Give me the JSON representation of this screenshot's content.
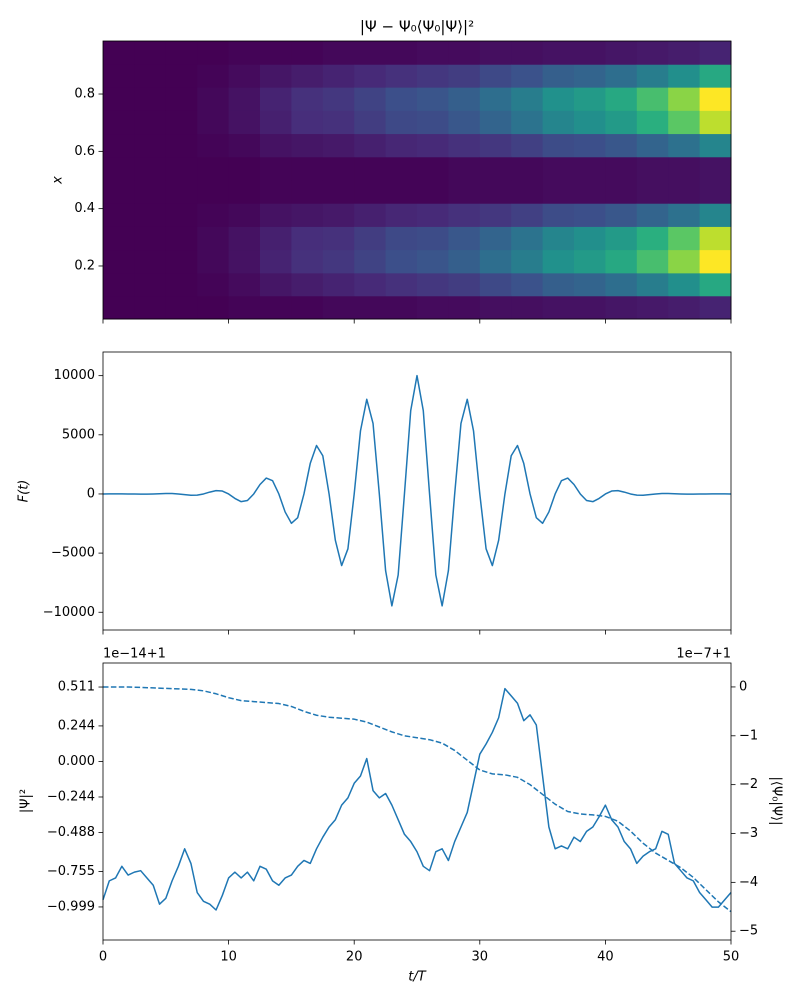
{
  "chart_data": [
    {
      "type": "heatmap",
      "title": "|Ψ − Ψ₀⟨Ψ₀|Ψ⟩|²",
      "ylabel": "x",
      "colormap": "viridis",
      "show_xtick_labels": false,
      "xlim": [
        0,
        50
      ],
      "xticks": [
        0,
        10,
        20,
        30,
        40,
        50
      ],
      "ylim": [
        0.015,
        0.985
      ],
      "yticks": [
        0.2,
        0.4,
        0.6,
        0.8
      ],
      "zlim": [
        0,
        1
      ],
      "x_edges": [
        0,
        2.5,
        5,
        7.5,
        10,
        12.5,
        15,
        17.5,
        20,
        22.5,
        25,
        27.5,
        30,
        32.5,
        35,
        37.5,
        40,
        42.5,
        45,
        47.5,
        50
      ],
      "y_edges": [
        0.015,
        0.096,
        0.176,
        0.257,
        0.338,
        0.419,
        0.5,
        0.581,
        0.662,
        0.743,
        0.824,
        0.904,
        0.985
      ],
      "z": [
        [
          0,
          0,
          0,
          0,
          0,
          0,
          0,
          0,
          0,
          0,
          0,
          0
        ],
        [
          0,
          0,
          0,
          0,
          0,
          0,
          0,
          0,
          0,
          0,
          0,
          0
        ],
        [
          0,
          0,
          0,
          0,
          0,
          0,
          0,
          0,
          0,
          0,
          0,
          0
        ],
        [
          0,
          0.01,
          0.02,
          0.02,
          0.01,
          0,
          0,
          0.01,
          0.02,
          0.02,
          0.01,
          0
        ],
        [
          0.01,
          0.03,
          0.05,
          0.05,
          0.02,
          0,
          0,
          0.02,
          0.05,
          0.05,
          0.03,
          0.01
        ],
        [
          0.01,
          0.06,
          0.1,
          0.09,
          0.05,
          0.01,
          0.01,
          0.05,
          0.09,
          0.1,
          0.06,
          0.01
        ],
        [
          0.01,
          0.08,
          0.14,
          0.13,
          0.06,
          0.01,
          0.01,
          0.06,
          0.13,
          0.14,
          0.08,
          0.01
        ],
        [
          0.02,
          0.1,
          0.16,
          0.14,
          0.07,
          0.01,
          0.01,
          0.07,
          0.14,
          0.16,
          0.1,
          0.02
        ],
        [
          0.02,
          0.12,
          0.2,
          0.18,
          0.09,
          0.01,
          0.01,
          0.09,
          0.18,
          0.2,
          0.12,
          0.02
        ],
        [
          0.02,
          0.14,
          0.24,
          0.22,
          0.11,
          0.01,
          0.01,
          0.11,
          0.22,
          0.24,
          0.14,
          0.02
        ],
        [
          0.03,
          0.16,
          0.26,
          0.23,
          0.12,
          0.01,
          0.01,
          0.12,
          0.23,
          0.26,
          0.16,
          0.03
        ],
        [
          0.03,
          0.18,
          0.3,
          0.27,
          0.14,
          0.02,
          0.02,
          0.14,
          0.27,
          0.3,
          0.18,
          0.03
        ],
        [
          0.04,
          0.22,
          0.36,
          0.32,
          0.16,
          0.02,
          0.02,
          0.16,
          0.32,
          0.36,
          0.22,
          0.04
        ],
        [
          0.04,
          0.25,
          0.42,
          0.38,
          0.19,
          0.02,
          0.02,
          0.19,
          0.38,
          0.42,
          0.25,
          0.04
        ],
        [
          0.05,
          0.3,
          0.5,
          0.45,
          0.23,
          0.03,
          0.03,
          0.23,
          0.45,
          0.5,
          0.3,
          0.05
        ],
        [
          0.05,
          0.32,
          0.54,
          0.49,
          0.24,
          0.03,
          0.03,
          0.24,
          0.49,
          0.54,
          0.32,
          0.05
        ],
        [
          0.06,
          0.36,
          0.6,
          0.54,
          0.27,
          0.03,
          0.03,
          0.27,
          0.54,
          0.6,
          0.36,
          0.06
        ],
        [
          0.07,
          0.42,
          0.7,
          0.63,
          0.32,
          0.04,
          0.04,
          0.32,
          0.63,
          0.7,
          0.42,
          0.07
        ],
        [
          0.08,
          0.49,
          0.82,
          0.74,
          0.37,
          0.04,
          0.04,
          0.37,
          0.74,
          0.82,
          0.49,
          0.08
        ],
        [
          0.1,
          0.6,
          1.0,
          0.9,
          0.45,
          0.05,
          0.05,
          0.45,
          0.9,
          1.0,
          0.6,
          0.1
        ]
      ]
    },
    {
      "type": "line",
      "ylabel": "F(t)",
      "show_xtick_labels": false,
      "xlim": [
        0,
        50
      ],
      "xticks": [
        0,
        10,
        20,
        30,
        40,
        50
      ],
      "ylim": [
        -11500,
        12000
      ],
      "yticks": [
        {
          "value": -10000,
          "label": "−10000"
        },
        {
          "value": -5000,
          "label": "−5000"
        },
        0,
        5000,
        10000
      ],
      "series": [
        {
          "color": "#1f77b4",
          "linestyle": "solid",
          "x": [
            0,
            0.5,
            1,
            1.5,
            2,
            2.5,
            3,
            3.5,
            4,
            4.5,
            5,
            5.5,
            6,
            6.5,
            7,
            7.5,
            8,
            8.5,
            9,
            9.5,
            10,
            10.5,
            11,
            11.5,
            12,
            12.5,
            13,
            13.5,
            14,
            14.5,
            15,
            15.5,
            16,
            16.5,
            17,
            17.5,
            18,
            18.5,
            19,
            19.5,
            20,
            20.5,
            21,
            21.5,
            22,
            22.5,
            23,
            23.5,
            24,
            24.5,
            25,
            25.5,
            26,
            26.5,
            27,
            27.5,
            28,
            28.5,
            29,
            29.5,
            30,
            30.5,
            31,
            31.5,
            32,
            32.5,
            33,
            33.5,
            34,
            34.5,
            35,
            35.5,
            36,
            36.5,
            37,
            37.5,
            38,
            38.5,
            39,
            39.5,
            40,
            40.5,
            41,
            41.5,
            42,
            42.5,
            43,
            43.5,
            44,
            44.5,
            45,
            45.5,
            46,
            46.5,
            47,
            47.5,
            48,
            48.5,
            49,
            49.5,
            50
          ],
          "values": [
            0,
            2,
            4,
            4,
            0,
            -8,
            -14,
            -12,
            0,
            20,
            38,
            35,
            0,
            -60,
            -109,
            -99,
            0,
            158,
            282,
            248,
            0,
            -377,
            -650,
            -556,
            0,
            800,
            1342,
            1118,
            0,
            -1520,
            -2479,
            -2008,
            0,
            2581,
            4096,
            3227,
            0,
            -3922,
            -6053,
            -4637,
            0,
            5332,
            8000,
            5960,
            0,
            -6481,
            -9457,
            -6853,
            0,
            7046,
            10000,
            7046,
            0,
            -6853,
            -9457,
            -6481,
            0,
            5960,
            8000,
            5332,
            0,
            -4637,
            -6053,
            -3922,
            0,
            3227,
            4096,
            2581,
            0,
            -2008,
            -2479,
            -1520,
            0,
            1118,
            1342,
            800,
            0,
            -556,
            -650,
            -377,
            0,
            248,
            282,
            158,
            0,
            -99,
            -109,
            -60,
            0,
            35,
            38,
            20,
            0,
            -12,
            -14,
            -8,
            0,
            4,
            4,
            2,
            0
          ]
        }
      ]
    },
    {
      "type": "line",
      "ylabel": "|Ψ|²",
      "y2label": "|⟨Ψ₀|Ψ⟩|",
      "xlabel": "t/T",
      "show_xtick_labels": true,
      "y_offset": "1e−14+1",
      "y2_offset": "1e−7+1",
      "xlim": [
        0,
        50
      ],
      "xticks": [
        0,
        10,
        20,
        30,
        40,
        50
      ],
      "ylim": [
        -1.226,
        0.676
      ],
      "yticks": [
        0.511,
        0.244,
        {
          "value": 0,
          "label": "0.000"
        },
        {
          "value": -0.244,
          "label": "−0.244"
        },
        {
          "value": -0.488,
          "label": "−0.488"
        },
        {
          "value": -0.755,
          "label": "−0.755"
        },
        {
          "value": -0.999,
          "label": "−0.999"
        }
      ],
      "y2lim": [
        -5.18,
        0.49
      ],
      "y2ticks": [
        0,
        {
          "value": -1,
          "label": "−1"
        },
        {
          "value": -2,
          "label": "−2"
        },
        {
          "value": -3,
          "label": "−3"
        },
        {
          "value": -4,
          "label": "−4"
        },
        {
          "value": -5,
          "label": "−5"
        }
      ],
      "series": [
        {
          "color": "#1f77b4",
          "linestyle": "solid",
          "x": [
            0,
            0.5,
            1,
            1.5,
            2,
            2.5,
            3,
            3.5,
            4,
            4.5,
            5,
            5.5,
            6,
            6.5,
            7,
            7.5,
            8,
            8.5,
            9,
            9.5,
            10,
            10.5,
            11,
            11.5,
            12,
            12.5,
            13,
            13.5,
            14,
            14.5,
            15,
            15.5,
            16,
            16.5,
            17,
            17.5,
            18,
            18.5,
            19,
            19.5,
            20,
            20.5,
            21,
            21.5,
            22,
            22.5,
            23,
            23.5,
            24,
            24.5,
            25,
            25.5,
            26,
            26.5,
            27,
            27.5,
            28,
            28.5,
            29,
            29.5,
            30,
            30.5,
            31,
            31.5,
            32,
            32.5,
            33,
            33.5,
            34,
            34.5,
            35,
            35.5,
            36,
            36.5,
            37,
            37.5,
            38,
            38.5,
            39,
            39.5,
            40,
            40.5,
            41,
            41.5,
            42,
            42.5,
            43,
            43.5,
            44,
            44.5,
            45,
            45.5,
            46,
            46.5,
            47,
            47.5,
            48,
            48.5,
            49,
            49.5,
            50
          ],
          "values": [
            -0.95,
            -0.82,
            -0.8,
            -0.72,
            -0.78,
            -0.76,
            -0.75,
            -0.8,
            -0.85,
            -0.98,
            -0.94,
            -0.82,
            -0.72,
            -0.6,
            -0.7,
            -0.9,
            -0.96,
            -0.98,
            -1.02,
            -0.92,
            -0.8,
            -0.76,
            -0.8,
            -0.76,
            -0.82,
            -0.72,
            -0.74,
            -0.82,
            -0.85,
            -0.8,
            -0.78,
            -0.72,
            -0.68,
            -0.7,
            -0.6,
            -0.52,
            -0.45,
            -0.4,
            -0.3,
            -0.25,
            -0.15,
            -0.1,
            0.02,
            -0.2,
            -0.25,
            -0.22,
            -0.3,
            -0.4,
            -0.5,
            -0.55,
            -0.62,
            -0.72,
            -0.75,
            -0.62,
            -0.6,
            -0.68,
            -0.55,
            -0.45,
            -0.35,
            -0.15,
            0.05,
            0.12,
            0.2,
            0.3,
            0.5,
            0.45,
            0.4,
            0.28,
            0.32,
            0.25,
            -0.1,
            -0.45,
            -0.6,
            -0.58,
            -0.6,
            -0.52,
            -0.55,
            -0.48,
            -0.45,
            -0.38,
            -0.3,
            -0.4,
            -0.45,
            -0.55,
            -0.6,
            -0.7,
            -0.65,
            -0.62,
            -0.6,
            -0.48,
            -0.5,
            -0.7,
            -0.75,
            -0.8,
            -0.82,
            -0.9,
            -0.95,
            -1.0,
            -1.0,
            -0.95,
            -0.9
          ]
        },
        {
          "color": "#1f77b4",
          "linestyle": "dashed",
          "axis": "y2",
          "x": [
            0,
            1,
            2,
            3,
            4,
            5,
            6,
            7,
            8,
            9,
            10,
            11,
            12,
            13,
            14,
            15,
            16,
            17,
            18,
            19,
            20,
            21,
            22,
            23,
            24,
            25,
            26,
            27,
            28,
            29,
            30,
            31,
            32,
            33,
            34,
            35,
            36,
            37,
            38,
            39,
            40,
            41,
            42,
            43,
            44,
            45,
            46,
            47,
            48,
            49,
            50
          ],
          "values": [
            0,
            0,
            0,
            -0.01,
            -0.02,
            -0.03,
            -0.04,
            -0.05,
            -0.08,
            -0.14,
            -0.22,
            -0.28,
            -0.3,
            -0.32,
            -0.34,
            -0.4,
            -0.5,
            -0.58,
            -0.62,
            -0.64,
            -0.66,
            -0.72,
            -0.82,
            -0.92,
            -1.0,
            -1.04,
            -1.08,
            -1.15,
            -1.3,
            -1.5,
            -1.7,
            -1.78,
            -1.8,
            -1.85,
            -2.0,
            -2.2,
            -2.4,
            -2.55,
            -2.6,
            -2.62,
            -2.65,
            -2.75,
            -2.95,
            -3.2,
            -3.4,
            -3.55,
            -3.7,
            -3.9,
            -4.15,
            -4.4,
            -4.6
          ]
        }
      ]
    }
  ]
}
